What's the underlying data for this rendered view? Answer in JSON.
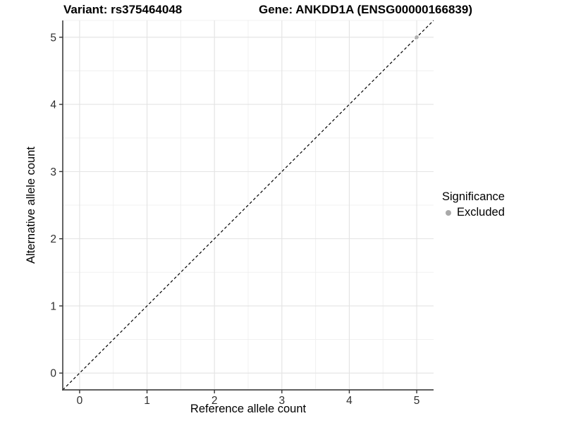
{
  "header": {
    "variant_title": "Variant: rs375464048",
    "gene_title": "Gene: ANKDD1A (ENSG00000166839)"
  },
  "chart_data": {
    "type": "scatter",
    "xlabel": "Reference allele count",
    "ylabel": "Alternative allele count",
    "xlim": [
      -0.25,
      5.25
    ],
    "ylim": [
      -0.25,
      5.25
    ],
    "x_major_ticks": [
      0,
      1,
      2,
      3,
      4,
      5
    ],
    "y_major_ticks": [
      0,
      1,
      2,
      3,
      4,
      5
    ],
    "x_minor_ticks": [
      0.5,
      1.5,
      2.5,
      3.5,
      4.5
    ],
    "y_minor_ticks": [
      0.5,
      1.5,
      2.5,
      3.5,
      4.5
    ],
    "grid": true,
    "series": [
      {
        "name": "Excluded",
        "color": "#afafaf",
        "marker": "circle",
        "points": [
          [
            5,
            5
          ]
        ]
      }
    ],
    "reference_line": {
      "type": "identity",
      "from": [
        -0.25,
        -0.25
      ],
      "to": [
        5.25,
        5.25
      ],
      "style": "dashed",
      "color": "#000000"
    },
    "legend": {
      "title": "Significance",
      "position": "right",
      "items": [
        {
          "label": "Excluded",
          "color": "#a9a9a9",
          "marker": "circle"
        }
      ]
    },
    "colors": {
      "panel_background": "#ffffff",
      "grid_major": "#e3e3e3",
      "grid_minor": "#f0f0f0",
      "axis_line": "#4a4a4a",
      "tick_mark": "#333333",
      "tick_label": "#2e2e2e",
      "axis_title": "#000000",
      "title": "#000000"
    }
  }
}
